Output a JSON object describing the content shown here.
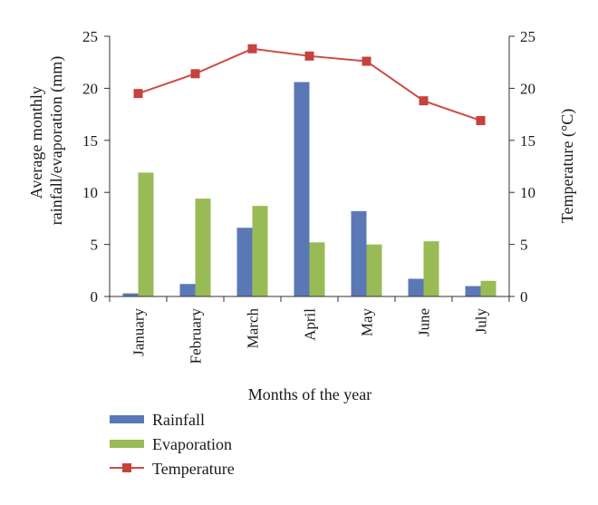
{
  "chart_data": {
    "type": "bar",
    "categories": [
      "January",
      "February",
      "March",
      "April",
      "May",
      "June",
      "July"
    ],
    "series": [
      {
        "name": "Rainfall",
        "type": "bar",
        "axis": "left",
        "color": "#5b78b6",
        "values": [
          0.3,
          1.2,
          6.6,
          20.6,
          8.2,
          1.7,
          1.0
        ]
      },
      {
        "name": "Evaporation",
        "type": "bar",
        "axis": "left",
        "color": "#99bb55",
        "values": [
          11.9,
          9.4,
          8.7,
          5.2,
          5.0,
          5.3,
          1.5
        ]
      },
      {
        "name": "Temperature",
        "type": "line",
        "axis": "right",
        "color": "#cf4a45",
        "marker": "square",
        "values": [
          19.5,
          21.4,
          23.8,
          23.1,
          22.6,
          18.8,
          16.9
        ]
      }
    ],
    "xlabel": "Months of the year",
    "ylabel_lines": [
      "Average monthly",
      "rainfall/evaporation (mm)"
    ],
    "y2label": "Temperature (°C)",
    "ylim": [
      0,
      25
    ],
    "y2lim": [
      0,
      25
    ],
    "yticks": [
      0,
      5,
      10,
      15,
      20,
      25
    ],
    "y2ticks": [
      0,
      5,
      10,
      15,
      20,
      25
    ],
    "grid": false,
    "legend_position": "bottom-left"
  }
}
